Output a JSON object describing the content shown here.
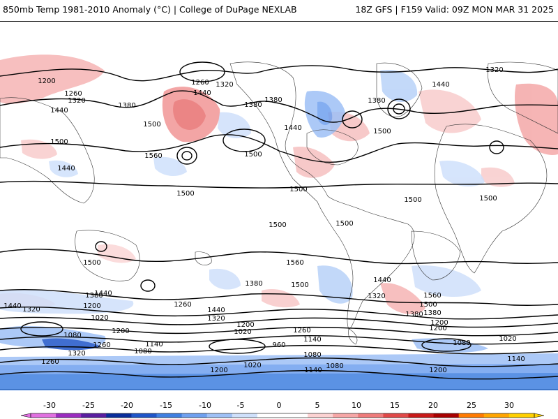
{
  "header": {
    "title_left": "850mb Temp 1981-2010 Anomaly (°C) | College of DuPage NEXLAB",
    "title_right": "18Z GFS | F159 Valid: 09Z MON MAR 31 2025"
  },
  "colorbar": {
    "ticks": [
      "-30",
      "-25",
      "-20",
      "-15",
      "-10",
      "-5",
      "0",
      "5",
      "10",
      "15",
      "20",
      "25",
      "30"
    ],
    "colors": [
      "#e070e0",
      "#9a2bbf",
      "#5a1ea0",
      "#0a2d9a",
      "#1f55c8",
      "#3f7fe0",
      "#6fa0ef",
      "#9ec0f6",
      "#cfe0fb",
      "#ffffff",
      "#ffffff",
      "#fcd2d2",
      "#f6a6a6",
      "#ee7a7a",
      "#e04848",
      "#c81818",
      "#a80000",
      "#ff7a00",
      "#ffa500",
      "#ffd000"
    ]
  },
  "contour_labels": [
    "1200",
    "1260",
    "1320",
    "1440",
    "1260",
    "1320",
    "1380",
    "1500",
    "1380",
    "1440",
    "1380",
    "1320",
    "1440",
    "1380",
    "1440",
    "1500",
    "1500",
    "1560",
    "1500",
    "1440",
    "1500",
    "1500",
    "1500",
    "1500",
    "1500",
    "1500",
    "1560",
    "1500",
    "1440",
    "1380",
    "1440",
    "1500",
    "1560",
    "1500",
    "1440",
    "1380",
    "1320",
    "1200",
    "1020",
    "1380",
    "1320",
    "1200",
    "1260",
    "1440",
    "1320",
    "1200",
    "1020",
    "1260",
    "1140",
    "960",
    "1200",
    "1080",
    "1140",
    "1080",
    "1260",
    "1020",
    "1080",
    "1200",
    "1140",
    "1080",
    "1320",
    "1260",
    "1200",
    "1020",
    "1200",
    "1380",
    "1080",
    "1140"
  ]
}
